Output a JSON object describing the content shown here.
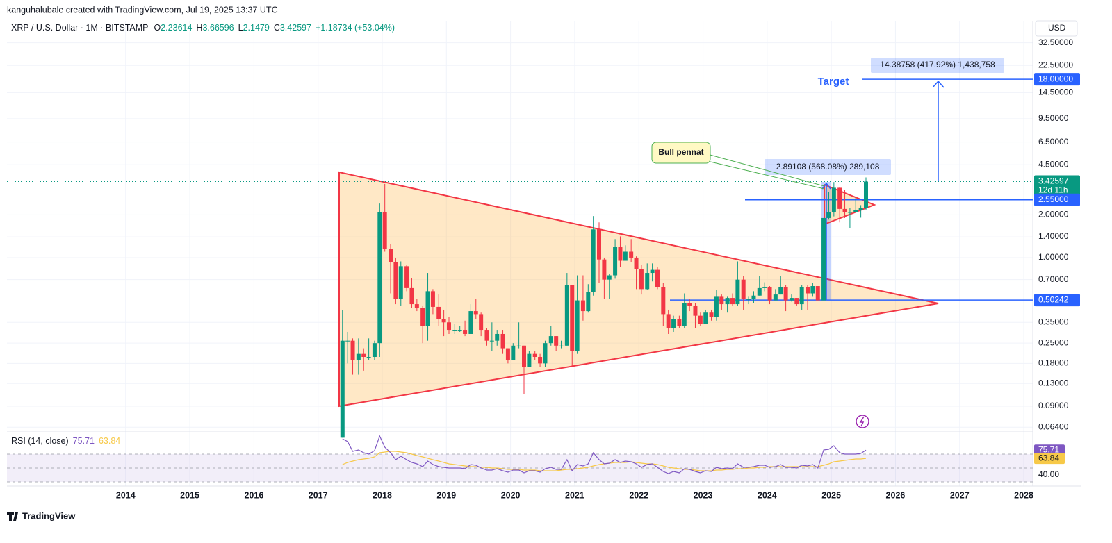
{
  "header": "kanguhalubale created with TradingView.com, Jul 19, 2025 13:37 UTC",
  "chart_data": {
    "type": "candlestick",
    "symbol": "XRP / U.S. Dollar · 1M · BITSTAMP",
    "ohlc_letters": [
      "O",
      "H",
      "L",
      "C"
    ],
    "change_label": "+1.18734 (+53.04%)",
    "currency": "USD",
    "log_scale": true,
    "grid": true,
    "xlim": [
      2012.15,
      2028.14
    ],
    "xticks": [
      2014,
      2015,
      2016,
      2017,
      2018,
      2019,
      2020,
      2021,
      2022,
      2023,
      2024,
      2025,
      2026,
      2027,
      2028
    ],
    "ylim": [
      0.06,
      35
    ],
    "yticks": [
      {
        "value": 32.5,
        "label": "32.50000"
      },
      {
        "value": 22.5,
        "label": "22.50000"
      },
      {
        "value": 14.5,
        "label": "14.50000"
      },
      {
        "value": 9.5,
        "label": "9.50000"
      },
      {
        "value": 6.5,
        "label": "6.50000"
      },
      {
        "value": 4.5,
        "label": "4.50000"
      },
      {
        "value": 2,
        "label": "2.00000"
      },
      {
        "value": 1.4,
        "label": "1.40000"
      },
      {
        "value": 1,
        "label": "1.00000"
      },
      {
        "value": 0.7,
        "label": "0.70000"
      },
      {
        "value": 0.35,
        "label": "0.35000"
      },
      {
        "value": 0.25,
        "label": "0.25000"
      },
      {
        "value": 0.18,
        "label": "0.18000"
      },
      {
        "value": 0.13,
        "label": "0.13000"
      },
      {
        "value": 0.09,
        "label": "0.09000"
      },
      {
        "value": 0.064,
        "label": "0.06400"
      }
    ],
    "x": [
      2017.38,
      2017.46,
      2017.54,
      2017.63,
      2017.71,
      2017.79,
      2017.88,
      2017.96,
      2018.04,
      2018.13,
      2018.21,
      2018.29,
      2018.38,
      2018.46,
      2018.54,
      2018.63,
      2018.71,
      2018.79,
      2018.88,
      2018.96,
      2019.04,
      2019.13,
      2019.21,
      2019.29,
      2019.38,
      2019.46,
      2019.54,
      2019.63,
      2019.71,
      2019.79,
      2019.88,
      2019.96,
      2020.04,
      2020.13,
      2020.21,
      2020.29,
      2020.38,
      2020.46,
      2020.54,
      2020.63,
      2020.71,
      2020.79,
      2020.88,
      2020.96,
      2021.04,
      2021.13,
      2021.21,
      2021.29,
      2021.38,
      2021.46,
      2021.54,
      2021.63,
      2021.71,
      2021.79,
      2021.88,
      2021.96,
      2022.04,
      2022.13,
      2022.21,
      2022.29,
      2022.38,
      2022.46,
      2022.54,
      2022.63,
      2022.71,
      2022.79,
      2022.88,
      2022.96,
      2023.04,
      2023.13,
      2023.21,
      2023.29,
      2023.38,
      2023.46,
      2023.54,
      2023.63,
      2023.71,
      2023.79,
      2023.88,
      2023.96,
      2024.04,
      2024.13,
      2024.21,
      2024.29,
      2024.38,
      2024.46,
      2024.54,
      2024.63,
      2024.71,
      2024.79,
      2024.88,
      2024.96,
      2025.04,
      2025.13,
      2025.21,
      2025.29,
      2025.38,
      2025.46,
      2025.54
    ],
    "series": [
      {
        "up_color": "#089981",
        "down_color": "#f23645",
        "open": [
          0.054,
          0.26,
          0.26,
          0.19,
          0.21,
          0.2,
          0.2,
          0.25,
          2.1,
          1.15,
          0.93,
          0.51,
          0.87,
          0.61,
          0.47,
          0.44,
          0.33,
          0.58,
          0.45,
          0.37,
          0.35,
          0.31,
          0.31,
          0.31,
          0.29,
          0.42,
          0.4,
          0.31,
          0.26,
          0.26,
          0.29,
          0.23,
          0.19,
          0.24,
          0.24,
          0.17,
          0.21,
          0.2,
          0.18,
          0.25,
          0.28,
          0.24,
          0.24,
          0.64,
          0.22,
          0.5,
          0.42,
          0.57,
          1.58,
          0.97,
          0.7,
          0.75,
          1.19,
          0.95,
          1.1,
          1.0,
          0.83,
          0.6,
          0.78,
          0.82,
          0.62,
          0.4,
          0.32,
          0.37,
          0.33,
          0.48,
          0.46,
          0.39,
          0.34,
          0.41,
          0.38,
          0.53,
          0.47,
          0.52,
          0.47,
          0.7,
          0.51,
          0.51,
          0.54,
          0.61,
          0.62,
          0.5,
          0.55,
          0.62,
          0.5,
          0.52,
          0.47,
          0.62,
          0.56,
          0.63,
          0.5,
          1.9,
          2.08,
          3.1,
          2.2,
          2.08,
          2.09,
          2.17,
          2.23614
        ],
        "high": [
          0.43,
          0.3,
          0.27,
          0.27,
          0.23,
          0.27,
          0.26,
          2.4,
          3.3,
          1.25,
          1.0,
          0.94,
          0.89,
          0.72,
          0.51,
          0.46,
          0.78,
          0.6,
          0.55,
          0.43,
          0.38,
          0.34,
          0.33,
          0.36,
          0.47,
          0.51,
          0.41,
          0.32,
          0.35,
          0.31,
          0.31,
          0.23,
          0.25,
          0.35,
          0.24,
          0.22,
          0.22,
          0.21,
          0.26,
          0.33,
          0.28,
          0.26,
          0.78,
          0.64,
          0.75,
          0.75,
          0.65,
          1.96,
          1.77,
          1.0,
          0.77,
          1.35,
          1.41,
          1.22,
          1.35,
          1.02,
          0.89,
          0.91,
          0.91,
          0.86,
          0.66,
          0.43,
          0.39,
          0.39,
          0.56,
          0.51,
          0.48,
          0.41,
          0.43,
          0.43,
          0.59,
          0.55,
          0.53,
          0.56,
          0.94,
          0.74,
          0.53,
          0.58,
          0.74,
          0.67,
          0.63,
          0.6,
          0.74,
          0.64,
          0.55,
          0.52,
          0.64,
          0.64,
          0.66,
          0.63,
          1.9,
          2.9,
          3.4,
          3.15,
          3.0,
          2.24,
          2.65,
          2.34,
          3.66596
        ],
        "low": [
          0.054,
          0.18,
          0.15,
          0.15,
          0.16,
          0.19,
          0.19,
          0.2,
          1.1,
          0.56,
          0.47,
          0.46,
          0.58,
          0.44,
          0.42,
          0.25,
          0.26,
          0.4,
          0.33,
          0.28,
          0.29,
          0.29,
          0.3,
          0.28,
          0.29,
          0.37,
          0.28,
          0.24,
          0.22,
          0.24,
          0.21,
          0.18,
          0.19,
          0.23,
          0.11,
          0.17,
          0.19,
          0.17,
          0.17,
          0.24,
          0.22,
          0.23,
          0.24,
          0.17,
          0.21,
          0.36,
          0.41,
          0.54,
          0.66,
          0.51,
          0.51,
          0.71,
          0.86,
          0.95,
          0.93,
          0.6,
          0.55,
          0.59,
          0.68,
          0.6,
          0.33,
          0.29,
          0.3,
          0.32,
          0.32,
          0.42,
          0.32,
          0.33,
          0.34,
          0.36,
          0.36,
          0.43,
          0.41,
          0.46,
          0.46,
          0.43,
          0.47,
          0.48,
          0.54,
          0.58,
          0.47,
          0.5,
          0.55,
          0.42,
          0.49,
          0.46,
          0.43,
          0.43,
          0.53,
          0.5,
          0.5,
          1.85,
          1.95,
          1.77,
          1.9,
          1.61,
          2.08,
          1.91,
          2.1479
        ],
        "close": [
          0.26,
          0.26,
          0.19,
          0.21,
          0.2,
          0.2,
          0.25,
          2.1,
          1.15,
          0.93,
          0.51,
          0.87,
          0.61,
          0.47,
          0.44,
          0.33,
          0.58,
          0.45,
          0.37,
          0.35,
          0.31,
          0.31,
          0.31,
          0.29,
          0.42,
          0.4,
          0.31,
          0.26,
          0.26,
          0.29,
          0.23,
          0.19,
          0.24,
          0.24,
          0.17,
          0.21,
          0.2,
          0.18,
          0.25,
          0.28,
          0.24,
          0.24,
          0.64,
          0.22,
          0.5,
          0.42,
          0.57,
          1.58,
          0.97,
          0.7,
          0.75,
          1.19,
          0.95,
          1.1,
          1.0,
          0.83,
          0.6,
          0.78,
          0.82,
          0.62,
          0.4,
          0.32,
          0.37,
          0.33,
          0.48,
          0.46,
          0.39,
          0.34,
          0.41,
          0.38,
          0.53,
          0.47,
          0.52,
          0.47,
          0.7,
          0.51,
          0.51,
          0.54,
          0.61,
          0.62,
          0.5,
          0.55,
          0.62,
          0.5,
          0.52,
          0.47,
          0.62,
          0.56,
          0.63,
          0.5,
          1.9,
          2.08,
          3.1,
          2.2,
          2.08,
          2.09,
          2.17,
          2.24,
          3.42597
        ]
      }
    ],
    "price_labels": [
      {
        "value": 18,
        "label": "18.00000",
        "color": "#2962ff"
      },
      {
        "value": 3.42597,
        "label": "3.42597",
        "note": "12d 11h",
        "color": "#089981"
      },
      {
        "value": 2.55,
        "label": "2.55000",
        "color": "#2962ff"
      },
      {
        "value": 0.50242,
        "label": "0.50242",
        "color": "#2962ff"
      }
    ],
    "annotations": {
      "target": "Target",
      "pennant": "Bull pennat",
      "measure_small": "2.89108 (568.08%) 289,108",
      "measure_large": "14.38758 (417.92%) 1,438,758"
    },
    "rsi": {
      "title": "RSI (14, close)",
      "ylim": [
        27,
        102
      ],
      "yticks": [
        {
          "value": 40,
          "label": "40.00"
        }
      ],
      "levels": [
        70,
        50,
        30
      ],
      "series": [
        {
          "color": "#7e57c2",
          "values": [
            92,
            88,
            74,
            76,
            72,
            70,
            75,
            96,
            80,
            72,
            62,
            67,
            62,
            58,
            56,
            52,
            60,
            55,
            52,
            51,
            50,
            50,
            50,
            49,
            55,
            54,
            50,
            47,
            47,
            49,
            46,
            44,
            47,
            47,
            43,
            46,
            46,
            44,
            49,
            51,
            48,
            48,
            62,
            46,
            55,
            53,
            56,
            72,
            62,
            56,
            57,
            62,
            58,
            60,
            59,
            56,
            51,
            55,
            56,
            51,
            45,
            42,
            45,
            43,
            49,
            48,
            45,
            43,
            46,
            45,
            51,
            49,
            50,
            49,
            56,
            51,
            51,
            52,
            54,
            54,
            51,
            52,
            55,
            51,
            51,
            50,
            54,
            53,
            55,
            50,
            76,
            77,
            82,
            72,
            70,
            70,
            70,
            71,
            75.71
          ]
        },
        {
          "color": "#f7c948",
          "values": [
            55,
            58,
            60,
            62,
            63,
            64,
            66,
            72,
            73,
            74,
            74,
            73,
            72,
            70,
            68,
            66,
            64,
            62,
            60,
            58,
            56,
            55,
            54,
            53,
            52,
            52,
            51,
            51,
            50,
            50,
            49,
            48,
            48,
            48,
            47,
            47,
            47,
            46,
            46,
            46,
            46,
            47,
            48,
            48,
            49,
            50,
            51,
            53,
            55,
            56,
            57,
            58,
            58,
            58,
            59,
            58,
            57,
            56,
            56,
            55,
            53,
            51,
            50,
            49,
            48,
            48,
            47,
            46,
            46,
            46,
            47,
            47,
            48,
            48,
            49,
            49,
            50,
            50,
            51,
            51,
            52,
            52,
            52,
            52,
            52,
            52,
            52,
            52,
            52,
            52,
            54,
            56,
            59,
            60,
            61,
            62,
            63,
            63,
            63.84
          ]
        }
      ]
    }
  },
  "footer": "TradingView"
}
